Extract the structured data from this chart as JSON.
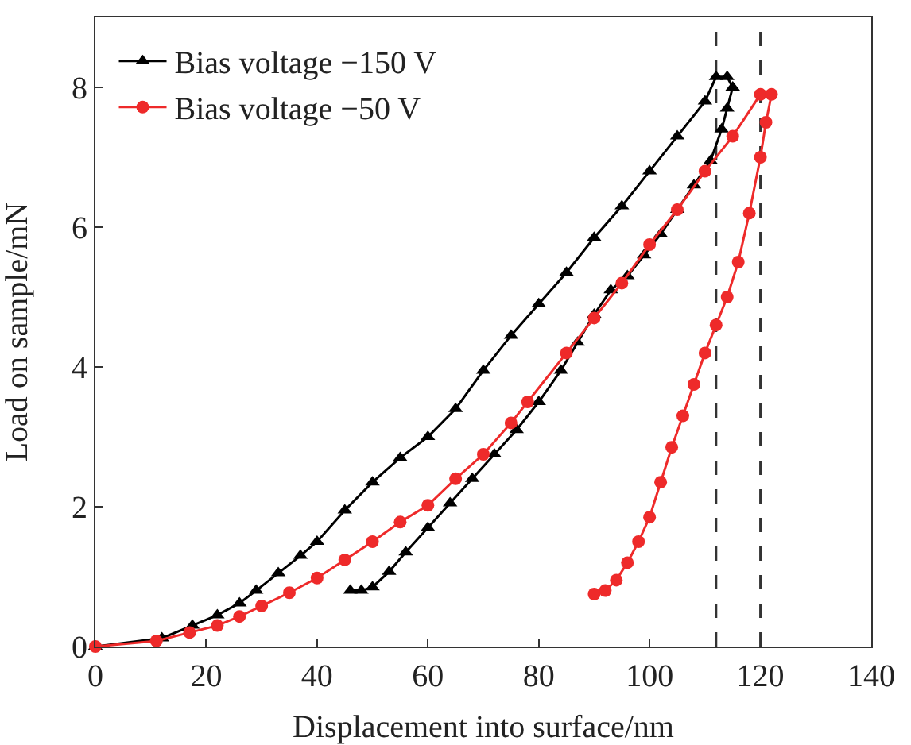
{
  "chart_data": {
    "type": "line",
    "xlabel": "Displacement into surface/nm",
    "ylabel": "Load on sample/mN",
    "xlim": [
      0,
      140
    ],
    "xticks": [
      0,
      20,
      40,
      60,
      80,
      100,
      120,
      140
    ],
    "ylim": [
      0,
      9
    ],
    "yticks": [
      0,
      2,
      4,
      6,
      8
    ],
    "legend": "top left",
    "line_style": "solid",
    "series": [
      {
        "name": "Bias voltage −150 V",
        "color": "#000000",
        "marker": "triangle",
        "x": [
          0,
          12,
          17.5,
          22,
          26,
          29,
          33,
          37,
          40,
          45,
          50,
          55,
          60,
          65,
          70,
          75,
          80,
          85,
          90,
          95,
          100,
          105,
          110,
          112,
          114,
          115,
          114,
          113,
          111,
          108,
          105,
          102,
          99,
          96,
          93,
          90,
          87,
          84,
          80,
          76,
          72,
          68,
          64,
          60,
          56,
          53,
          50,
          48,
          46
        ],
        "values": [
          0,
          0.12,
          0.3,
          0.45,
          0.62,
          0.8,
          1.05,
          1.3,
          1.5,
          1.95,
          2.35,
          2.7,
          3.0,
          3.4,
          3.95,
          4.45,
          4.9,
          5.35,
          5.85,
          6.3,
          6.8,
          7.3,
          7.8,
          8.15,
          8.15,
          8.0,
          7.7,
          7.4,
          6.95,
          6.6,
          6.25,
          5.9,
          5.6,
          5.3,
          5.1,
          4.75,
          4.35,
          3.95,
          3.5,
          3.1,
          2.75,
          2.4,
          2.05,
          1.7,
          1.35,
          1.07,
          0.85,
          0.8,
          0.8
        ]
      },
      {
        "name": "Bias voltage −50 V",
        "color": "#ee2a2a",
        "marker": "circle",
        "x": [
          0,
          11,
          17,
          22,
          26,
          30,
          35,
          40,
          45,
          50,
          55,
          60,
          65,
          70,
          75,
          78,
          85,
          90,
          95,
          100,
          105,
          110,
          115,
          120,
          122,
          121,
          120,
          118,
          116,
          114,
          112,
          110,
          108,
          106,
          104,
          102,
          100,
          98,
          96,
          94,
          92,
          90
        ],
        "values": [
          0,
          0.08,
          0.2,
          0.3,
          0.43,
          0.58,
          0.77,
          0.98,
          1.24,
          1.5,
          1.78,
          2.02,
          2.4,
          2.75,
          3.2,
          3.5,
          4.2,
          4.7,
          5.2,
          5.75,
          6.25,
          6.8,
          7.3,
          7.9,
          7.9,
          7.5,
          7.0,
          6.2,
          5.5,
          5.0,
          4.6,
          4.2,
          3.75,
          3.3,
          2.85,
          2.35,
          1.85,
          1.5,
          1.2,
          0.95,
          0.8,
          0.75
        ]
      }
    ],
    "ref_lines": [
      {
        "axis": "x",
        "value": 112,
        "color": "#333333",
        "line_style": "dashed"
      },
      {
        "axis": "x",
        "value": 120,
        "color": "#333333",
        "line_style": "dashed"
      }
    ]
  }
}
